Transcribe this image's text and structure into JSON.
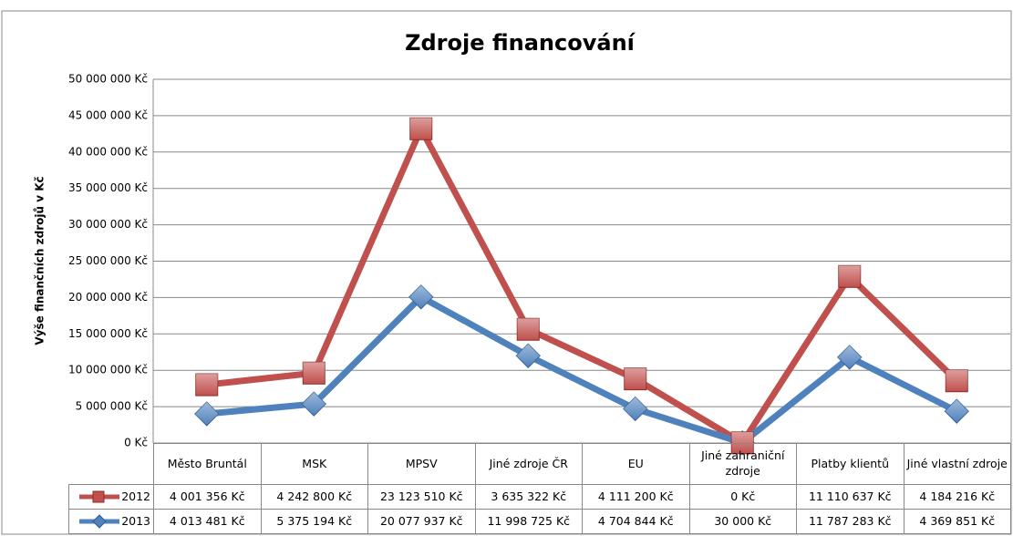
{
  "chart_data": {
    "type": "line",
    "stacked": true,
    "title": "Zdroje financování",
    "y_label": "Výše finančních zdrojů v Kč",
    "categories": [
      "Město Bruntál",
      "MSK",
      "MPSV",
      "Jiné zdroje ČR",
      "EU",
      "Jiné zahraniční zdroje",
      "Platby klientů",
      "Jiné vlastní zdroje"
    ],
    "series": [
      {
        "name": "2012",
        "color": "#c0504d",
        "marker": "square",
        "values": [
          4001356,
          4242800,
          23123510,
          3635322,
          4111200,
          0,
          11110637,
          4184216
        ],
        "value_labels": [
          "4 001 356 Kč",
          "4 242 800 Kč",
          "23 123 510 Kč",
          "3 635 322 Kč",
          "4 111 200 Kč",
          "0 Kč",
          "11 110 637 Kč",
          "4 184 216 Kč"
        ]
      },
      {
        "name": "2013",
        "color": "#4f81bd",
        "marker": "diamond",
        "values": [
          4013481,
          5375194,
          20077937,
          11998725,
          4704844,
          30000,
          11787283,
          4369851
        ],
        "value_labels": [
          "4 013 481 Kč",
          "5 375 194 Kč",
          "20 077 937 Kč",
          "11 998 725 Kč",
          "4 704 844 Kč",
          "30 000 Kč",
          "11 787 283 Kč",
          "4 369 851 Kč"
        ]
      }
    ],
    "ylim": [
      0,
      50000000
    ],
    "yticks": [
      {
        "value": 0,
        "label": "0 Kč"
      },
      {
        "value": 5000000,
        "label": "5 000 000 Kč"
      },
      {
        "value": 10000000,
        "label": "10 000 000 Kč"
      },
      {
        "value": 15000000,
        "label": "15 000 000 Kč"
      },
      {
        "value": 20000000,
        "label": "20 000 000 Kč"
      },
      {
        "value": 25000000,
        "label": "25 000 000 Kč"
      },
      {
        "value": 30000000,
        "label": "30 000 000 Kč"
      },
      {
        "value": 35000000,
        "label": "35 000 000 Kč"
      },
      {
        "value": 40000000,
        "label": "40 000 000 Kč"
      },
      {
        "value": 45000000,
        "label": "45 000 000 Kč"
      },
      {
        "value": 50000000,
        "label": "50 000 000 Kč"
      }
    ],
    "grid": true
  }
}
